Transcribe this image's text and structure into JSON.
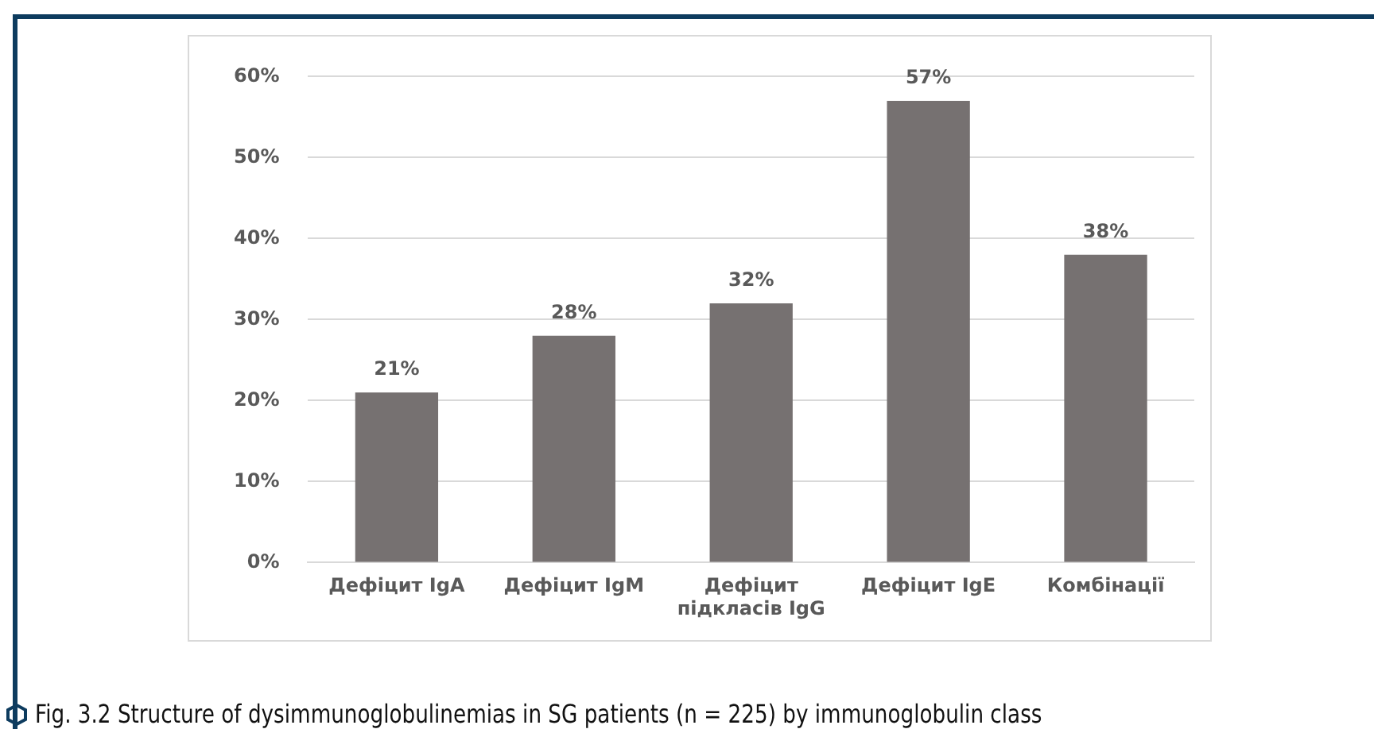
{
  "chart_data": {
    "type": "bar",
    "categories": [
      "Дефіцит IgA",
      "Дефіцит IgM",
      "Дефіцит\nпідкласів IgG",
      "Дефіцит IgE",
      "Комбінації"
    ],
    "values": [
      21,
      28,
      32,
      57,
      38
    ],
    "value_labels": [
      "21%",
      "28%",
      "32%",
      "57%",
      "38%"
    ],
    "color": "#767171",
    "ylim": [
      0,
      60
    ],
    "yticks": [
      {
        "value": 0,
        "label": "0%"
      },
      {
        "value": 10,
        "label": "10%"
      },
      {
        "value": 20,
        "label": "20%"
      },
      {
        "value": 30,
        "label": "30%"
      },
      {
        "value": 40,
        "label": "40%"
      },
      {
        "value": 50,
        "label": "50%"
      },
      {
        "value": 60,
        "label": "60%"
      }
    ],
    "grid": "y",
    "legend": false,
    "annotations": [
      "Fig. 3.2 Structure of dysimmunoglobulinemias in SG patients (n = 225) by immunoglobulin class"
    ]
  }
}
